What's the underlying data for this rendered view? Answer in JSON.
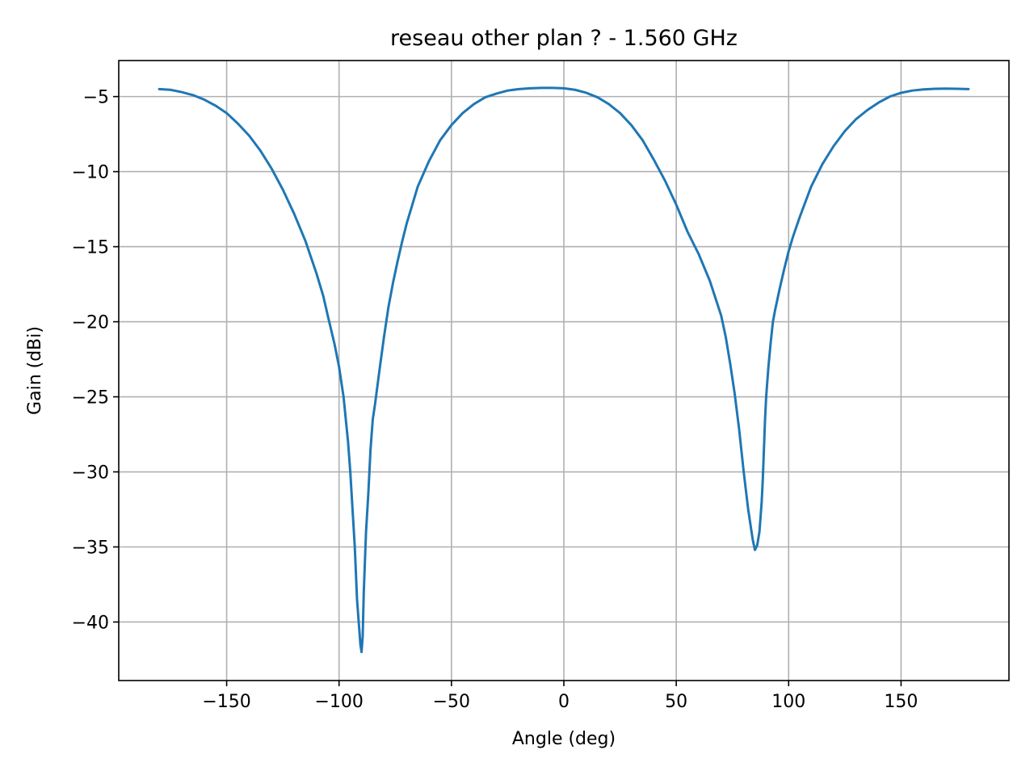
{
  "chart_data": {
    "type": "line",
    "title": "reseau other plan ? - 1.560 GHz",
    "xlabel": "Angle (deg)",
    "ylabel": "Gain (dBi)",
    "xlim": [
      -198,
      198
    ],
    "ylim": [
      -43.9,
      -2.6
    ],
    "xticks": [
      -150,
      -100,
      -50,
      0,
      50,
      100,
      150
    ],
    "xtick_labels": [
      "−150",
      "−100",
      "−50",
      "0",
      "50",
      "100",
      "150"
    ],
    "yticks": [
      -40,
      -35,
      -30,
      -25,
      -20,
      -15,
      -10,
      -5
    ],
    "ytick_labels": [
      "−40",
      "−35",
      "−30",
      "−25",
      "−20",
      "−15",
      "−10",
      "−5"
    ],
    "grid": true,
    "color": "#1f77b4",
    "series": [
      {
        "x": [
          -180,
          -175,
          -170,
          -165,
          -160,
          -155,
          -150,
          -145,
          -140,
          -135,
          -130,
          -125,
          -120,
          -115,
          -110,
          -107,
          -105,
          -102,
          -100,
          -98,
          -96,
          -95,
          -94,
          -93,
          -92,
          -91,
          -90.5,
          -90,
          -89.5,
          -89,
          -88,
          -87,
          -86,
          -85,
          -84,
          -82,
          -80,
          -78,
          -76,
          -74,
          -72,
          -70,
          -65,
          -60,
          -55,
          -50,
          -45,
          -40,
          -35,
          -30,
          -25,
          -20,
          -15,
          -10,
          -5,
          0,
          5,
          10,
          15,
          20,
          25,
          30,
          35,
          40,
          45,
          50,
          55,
          60,
          65,
          70,
          72,
          74,
          76,
          78,
          80,
          82,
          84,
          85,
          86,
          87,
          88,
          88.5,
          89,
          89.5,
          90,
          91,
          92,
          93,
          94,
          95,
          96,
          98,
          100,
          102,
          105,
          107,
          110,
          115,
          120,
          125,
          130,
          135,
          140,
          145,
          150,
          155,
          160,
          165,
          170,
          175,
          180
        ],
        "y": [
          -4.5,
          -4.55,
          -4.7,
          -4.9,
          -5.2,
          -5.6,
          -6.1,
          -6.8,
          -7.6,
          -8.6,
          -9.8,
          -11.2,
          -12.8,
          -14.6,
          -16.8,
          -18.3,
          -19.6,
          -21.5,
          -23.0,
          -25.0,
          -28.0,
          -30.0,
          -32.5,
          -35.0,
          -38.5,
          -40.5,
          -41.5,
          -42.0,
          -41.0,
          -38.0,
          -34.0,
          -31.5,
          -28.5,
          -26.5,
          -25.5,
          -23.2,
          -21.0,
          -19.0,
          -17.4,
          -16.0,
          -14.7,
          -13.5,
          -11.0,
          -9.3,
          -7.9,
          -6.9,
          -6.1,
          -5.5,
          -5.05,
          -4.8,
          -4.6,
          -4.5,
          -4.45,
          -4.42,
          -4.42,
          -4.45,
          -4.55,
          -4.75,
          -5.05,
          -5.5,
          -6.1,
          -6.9,
          -7.9,
          -9.2,
          -10.6,
          -12.2,
          -14.0,
          -15.5,
          -17.3,
          -19.6,
          -21.0,
          -22.8,
          -24.8,
          -27.2,
          -30.0,
          -32.5,
          -34.5,
          -35.2,
          -34.9,
          -34.0,
          -32.0,
          -30.5,
          -28.5,
          -26.5,
          -25.0,
          -23.0,
          -21.4,
          -20.0,
          -19.2,
          -18.5,
          -17.8,
          -16.5,
          -15.3,
          -14.3,
          -13.0,
          -12.2,
          -11.0,
          -9.5,
          -8.3,
          -7.3,
          -6.5,
          -5.9,
          -5.4,
          -5.0,
          -4.75,
          -4.6,
          -4.52,
          -4.48,
          -4.47,
          -4.48,
          -4.5
        ]
      }
    ]
  }
}
